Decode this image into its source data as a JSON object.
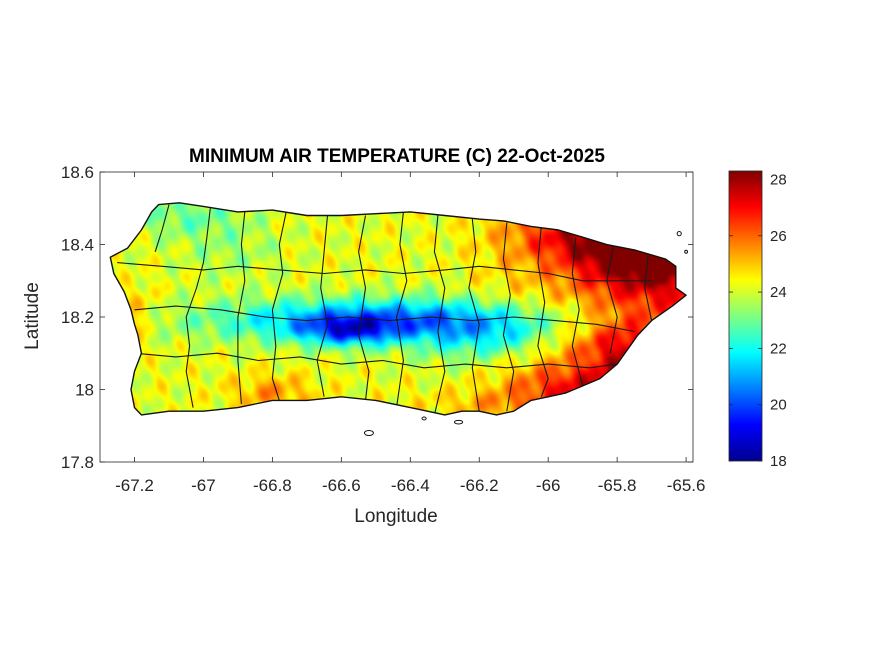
{
  "chart_data": {
    "type": "heatmap",
    "title": "MINIMUM AIR TEMPERATURE (C) 22-Oct-2025",
    "xlabel": "Longitude",
    "ylabel": "Latitude",
    "xlim": [
      -67.3,
      -65.58
    ],
    "ylim": [
      17.8,
      18.6
    ],
    "xticks": [
      -67.2,
      -67,
      -66.8,
      -66.6,
      -66.4,
      -66.2,
      -66,
      -65.8,
      -65.6
    ],
    "xtick_labels": [
      "-67.2",
      "-67",
      "-66.8",
      "-66.6",
      "-66.4",
      "-66.2",
      "-66",
      "-65.8",
      "-65.6"
    ],
    "yticks": [
      17.8,
      18,
      18.2,
      18.4,
      18.6
    ],
    "ytick_labels": [
      "17.8",
      "18",
      "18.2",
      "18.4",
      "18.6"
    ],
    "colorbar": {
      "colormap": "jet",
      "range": [
        18,
        28.3
      ],
      "ticks": [
        18,
        20,
        22,
        24,
        26,
        28
      ],
      "tick_labels": [
        "18",
        "20",
        "22",
        "24",
        "26",
        "28"
      ]
    },
    "grid": false,
    "island_outline": [
      [
        -67.27,
        18.365
      ],
      [
        -67.22,
        18.39
      ],
      [
        -67.18,
        18.44
      ],
      [
        -67.15,
        18.49
      ],
      [
        -67.13,
        18.51
      ],
      [
        -67.07,
        18.515
      ],
      [
        -67.0,
        18.505
      ],
      [
        -66.9,
        18.49
      ],
      [
        -66.8,
        18.495
      ],
      [
        -66.7,
        18.48
      ],
      [
        -66.6,
        18.48
      ],
      [
        -66.5,
        18.485
      ],
      [
        -66.4,
        18.49
      ],
      [
        -66.3,
        18.48
      ],
      [
        -66.2,
        18.47
      ],
      [
        -66.13,
        18.465
      ],
      [
        -66.05,
        18.45
      ],
      [
        -65.97,
        18.44
      ],
      [
        -65.9,
        18.42
      ],
      [
        -65.83,
        18.4
      ],
      [
        -65.75,
        18.385
      ],
      [
        -65.66,
        18.36
      ],
      [
        -65.63,
        18.34
      ],
      [
        -65.63,
        18.28
      ],
      [
        -65.6,
        18.26
      ],
      [
        -65.64,
        18.23
      ],
      [
        -65.7,
        18.19
      ],
      [
        -65.74,
        18.15
      ],
      [
        -65.77,
        18.11
      ],
      [
        -65.8,
        18.07
      ],
      [
        -65.85,
        18.03
      ],
      [
        -65.9,
        18.01
      ],
      [
        -65.95,
        17.99
      ],
      [
        -66.0,
        17.98
      ],
      [
        -66.05,
        17.97
      ],
      [
        -66.1,
        17.94
      ],
      [
        -66.15,
        17.93
      ],
      [
        -66.2,
        17.94
      ],
      [
        -66.25,
        17.94
      ],
      [
        -66.3,
        17.93
      ],
      [
        -66.35,
        17.94
      ],
      [
        -66.4,
        17.95
      ],
      [
        -66.5,
        17.97
      ],
      [
        -66.6,
        17.98
      ],
      [
        -66.7,
        17.97
      ],
      [
        -66.8,
        17.97
      ],
      [
        -66.85,
        17.96
      ],
      [
        -66.9,
        17.95
      ],
      [
        -67.0,
        17.94
      ],
      [
        -67.1,
        17.94
      ],
      [
        -67.18,
        17.93
      ],
      [
        -67.2,
        17.95
      ],
      [
        -67.21,
        18.0
      ],
      [
        -67.2,
        18.05
      ],
      [
        -67.18,
        18.1
      ],
      [
        -67.19,
        18.15
      ],
      [
        -67.2,
        18.18
      ],
      [
        -67.21,
        18.22
      ],
      [
        -67.23,
        18.27
      ],
      [
        -67.26,
        18.32
      ]
    ],
    "temperature_features": [
      {
        "lon": -66.45,
        "lat": 18.19,
        "value": -4.0,
        "sx": 0.5,
        "sy": 0.06
      },
      {
        "lon": -66.58,
        "lat": 18.16,
        "value": -2.5,
        "sx": 0.13,
        "sy": 0.04
      },
      {
        "lon": -66.22,
        "lat": 18.12,
        "value": -1.2,
        "sx": 0.16,
        "sy": 0.06
      },
      {
        "lon": -66.1,
        "lat": 18.14,
        "value": -0.8,
        "sx": 0.12,
        "sy": 0.05
      },
      {
        "lon": -67.05,
        "lat": 18.48,
        "value": -1.2,
        "sx": 0.18,
        "sy": 0.06
      },
      {
        "lon": -66.92,
        "lat": 18.38,
        "value": -0.7,
        "sx": 0.15,
        "sy": 0.08
      },
      {
        "lon": -65.72,
        "lat": 18.36,
        "value": 3.2,
        "sx": 0.18,
        "sy": 0.09
      },
      {
        "lon": -65.9,
        "lat": 18.42,
        "value": 2.0,
        "sx": 0.2,
        "sy": 0.07
      },
      {
        "lon": -65.78,
        "lat": 18.1,
        "value": 1.8,
        "sx": 0.12,
        "sy": 0.1
      },
      {
        "lon": -65.95,
        "lat": 18.01,
        "value": 1.5,
        "sx": 0.15,
        "sy": 0.05
      },
      {
        "lon": -66.8,
        "lat": 17.99,
        "value": 1.3,
        "sx": 0.12,
        "sy": 0.05
      },
      {
        "lon": -67.19,
        "lat": 18.21,
        "value": 1.0,
        "sx": 0.05,
        "sy": 0.07
      },
      {
        "lon": -66.15,
        "lat": 17.96,
        "value": 0.8,
        "sx": 0.25,
        "sy": 0.04
      }
    ],
    "municipality_borders": [
      [
        [
          -67.1,
          18.51
        ],
        [
          -67.12,
          18.44
        ],
        [
          -67.14,
          18.38
        ]
      ],
      [
        [
          -66.98,
          18.5
        ],
        [
          -66.99,
          18.42
        ],
        [
          -67.0,
          18.35
        ],
        [
          -67.02,
          18.28
        ],
        [
          -67.05,
          18.2
        ],
        [
          -67.04,
          18.12
        ],
        [
          -67.05,
          18.05
        ],
        [
          -67.03,
          17.95
        ]
      ],
      [
        [
          -66.88,
          18.49
        ],
        [
          -66.89,
          18.4
        ],
        [
          -66.88,
          18.3
        ],
        [
          -66.9,
          18.2
        ],
        [
          -66.9,
          18.08
        ],
        [
          -66.89,
          17.96
        ]
      ],
      [
        [
          -66.76,
          18.49
        ],
        [
          -66.78,
          18.4
        ],
        [
          -66.77,
          18.32
        ],
        [
          -66.8,
          18.22
        ],
        [
          -66.79,
          18.12
        ],
        [
          -66.8,
          18.03
        ],
        [
          -66.78,
          17.97
        ]
      ],
      [
        [
          -66.64,
          18.48
        ],
        [
          -66.65,
          18.38
        ],
        [
          -66.66,
          18.28
        ],
        [
          -66.64,
          18.18
        ],
        [
          -66.67,
          18.08
        ],
        [
          -66.65,
          17.98
        ]
      ],
      [
        [
          -66.53,
          18.48
        ],
        [
          -66.55,
          18.38
        ],
        [
          -66.53,
          18.28
        ],
        [
          -66.55,
          18.15
        ],
        [
          -66.52,
          18.05
        ],
        [
          -66.53,
          17.97
        ]
      ],
      [
        [
          -66.42,
          18.49
        ],
        [
          -66.43,
          18.4
        ],
        [
          -66.41,
          18.3
        ],
        [
          -66.44,
          18.2
        ],
        [
          -66.42,
          18.08
        ],
        [
          -66.44,
          17.95
        ]
      ],
      [
        [
          -66.32,
          18.48
        ],
        [
          -66.33,
          18.38
        ],
        [
          -66.3,
          18.28
        ],
        [
          -66.32,
          18.16
        ],
        [
          -66.3,
          18.05
        ],
        [
          -66.33,
          17.93
        ]
      ],
      [
        [
          -66.22,
          18.47
        ],
        [
          -66.21,
          18.38
        ],
        [
          -66.23,
          18.28
        ],
        [
          -66.2,
          18.18
        ],
        [
          -66.22,
          18.06
        ],
        [
          -66.2,
          17.94
        ]
      ],
      [
        [
          -66.12,
          18.46
        ],
        [
          -66.13,
          18.36
        ],
        [
          -66.11,
          18.26
        ],
        [
          -66.13,
          18.15
        ],
        [
          -66.1,
          18.05
        ],
        [
          -66.12,
          17.94
        ]
      ],
      [
        [
          -66.02,
          18.45
        ],
        [
          -66.03,
          18.35
        ],
        [
          -66.01,
          18.24
        ],
        [
          -66.03,
          18.12
        ],
        [
          -66.0,
          18.03
        ],
        [
          -66.02,
          17.98
        ]
      ],
      [
        [
          -65.92,
          18.42
        ],
        [
          -65.93,
          18.32
        ],
        [
          -65.91,
          18.22
        ],
        [
          -65.93,
          18.12
        ],
        [
          -65.9,
          18.01
        ]
      ],
      [
        [
          -65.81,
          18.4
        ],
        [
          -65.83,
          18.3
        ],
        [
          -65.8,
          18.2
        ],
        [
          -65.82,
          18.1
        ]
      ],
      [
        [
          -65.71,
          18.37
        ],
        [
          -65.72,
          18.28
        ],
        [
          -65.7,
          18.19
        ]
      ],
      [
        [
          -67.25,
          18.35
        ],
        [
          -67.12,
          18.34
        ],
        [
          -67.0,
          18.33
        ],
        [
          -66.9,
          18.34
        ],
        [
          -66.78,
          18.33
        ],
        [
          -66.65,
          18.32
        ],
        [
          -66.53,
          18.33
        ],
        [
          -66.42,
          18.32
        ],
        [
          -66.3,
          18.33
        ],
        [
          -66.2,
          18.34
        ],
        [
          -66.1,
          18.33
        ],
        [
          -66.0,
          18.32
        ],
        [
          -65.9,
          18.3
        ],
        [
          -65.8,
          18.3
        ],
        [
          -65.7,
          18.3
        ]
      ],
      [
        [
          -67.2,
          18.22
        ],
        [
          -67.08,
          18.23
        ],
        [
          -66.95,
          18.22
        ],
        [
          -66.82,
          18.2
        ],
        [
          -66.7,
          18.19
        ],
        [
          -66.58,
          18.2
        ],
        [
          -66.46,
          18.19
        ],
        [
          -66.34,
          18.2
        ],
        [
          -66.22,
          18.19
        ],
        [
          -66.1,
          18.2
        ],
        [
          -65.98,
          18.19
        ],
        [
          -65.86,
          18.18
        ],
        [
          -65.75,
          18.16
        ]
      ],
      [
        [
          -67.2,
          18.1
        ],
        [
          -67.08,
          18.09
        ],
        [
          -66.96,
          18.1
        ],
        [
          -66.84,
          18.08
        ],
        [
          -66.72,
          18.09
        ],
        [
          -66.6,
          18.07
        ],
        [
          -66.48,
          18.08
        ],
        [
          -66.36,
          18.06
        ],
        [
          -66.24,
          18.07
        ],
        [
          -66.12,
          18.06
        ],
        [
          -66.0,
          18.07
        ],
        [
          -65.88,
          18.06
        ],
        [
          -65.8,
          18.07
        ]
      ]
    ],
    "offshore_islets": [
      {
        "lon": -66.52,
        "lat": 17.88,
        "rlon": 0.013,
        "rlat": 0.007
      },
      {
        "lon": -66.26,
        "lat": 17.91,
        "rlon": 0.012,
        "rlat": 0.005
      },
      {
        "lon": -66.36,
        "lat": 17.92,
        "rlon": 0.006,
        "rlat": 0.004
      },
      {
        "lon": -65.62,
        "lat": 18.43,
        "rlon": 0.006,
        "rlat": 0.006
      },
      {
        "lon": -65.6,
        "lat": 18.38,
        "rlon": 0.004,
        "rlat": 0.004
      }
    ]
  }
}
